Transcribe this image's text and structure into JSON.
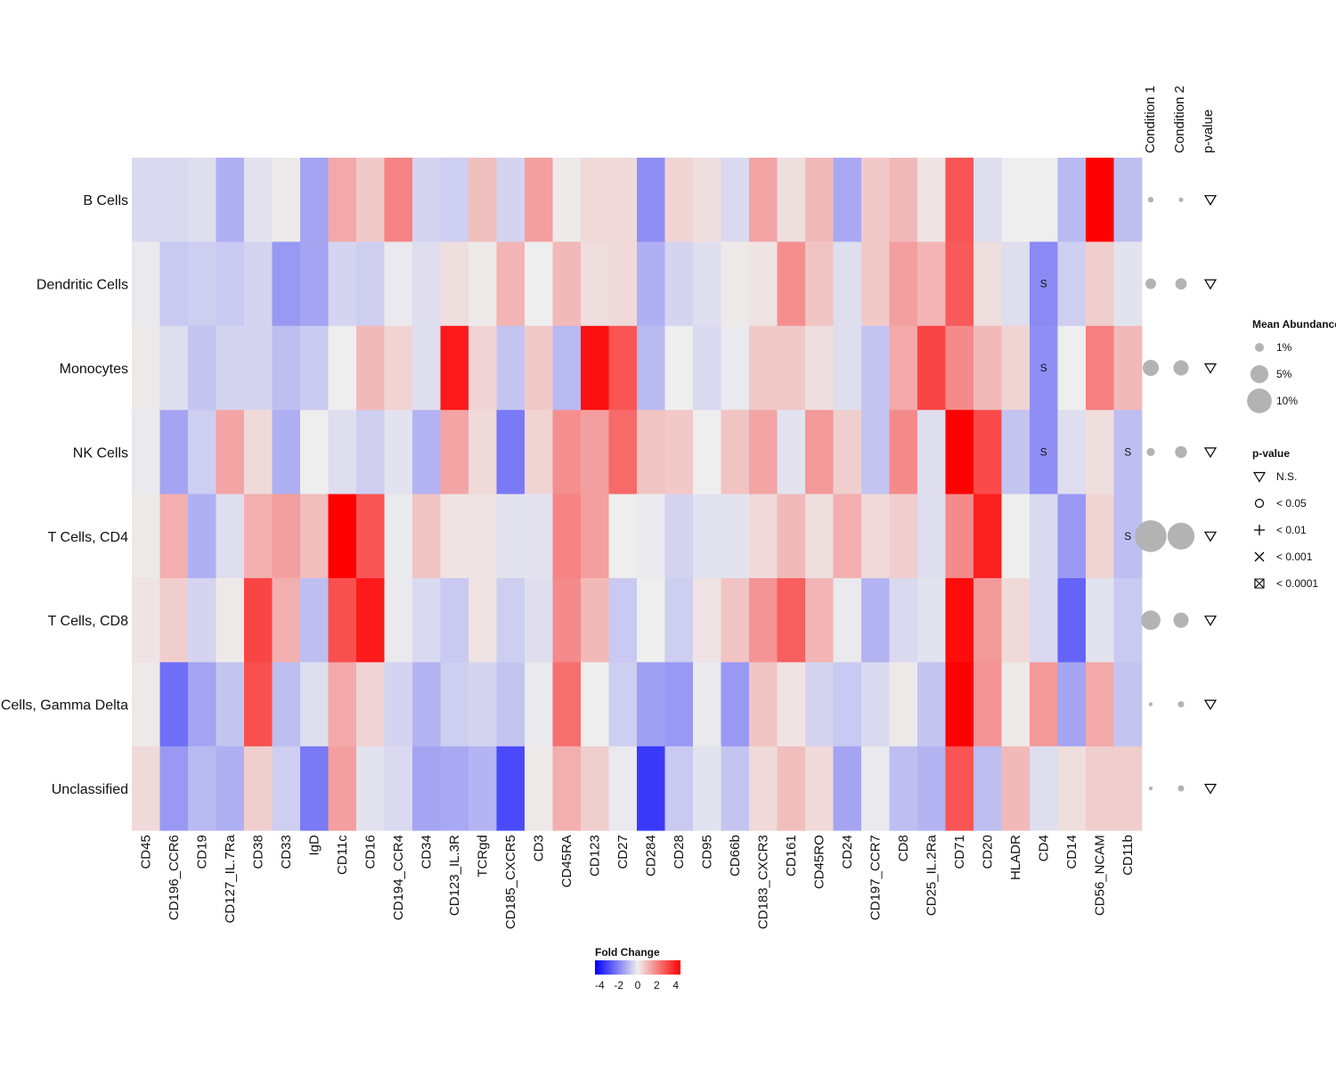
{
  "chart_data": {
    "type": "heatmap",
    "rows": [
      "B Cells",
      "Dendritic Cells",
      "Monocytes",
      "NK Cells",
      "T Cells, CD4",
      "T Cells, CD8",
      "Cells, Gamma Delta",
      "Unclassified"
    ],
    "columns": [
      "CD45",
      "CD196_CCR6",
      "CD19",
      "CD127_IL.7Ra",
      "CD38",
      "CD33",
      "IgD",
      "CD11c",
      "CD16",
      "CD194_CCR4",
      "CD34",
      "CD123_IL.3R",
      "TCRgd",
      "CD185_CXCR5",
      "CD3",
      "CD45RA",
      "CD123",
      "CD27",
      "CD284",
      "CD28",
      "CD95",
      "CD66b",
      "CD183_CXCR3",
      "CD161",
      "CD45RO",
      "CD24",
      "CD197_CCR7",
      "CD8",
      "CD25_IL.2Ra",
      "CD71",
      "CD20",
      "HLADR",
      "CD4",
      "CD14",
      "CD56_NCAM",
      "CD11b"
    ],
    "values": [
      [
        -0.4,
        -0.4,
        -0.3,
        -1.2,
        -0.2,
        0.1,
        -1.4,
        1.3,
        0.7,
        2.0,
        -0.5,
        -0.6,
        0.9,
        -0.5,
        1.5,
        0.1,
        0.4,
        0.4,
        -1.8,
        0.5,
        0.3,
        -0.4,
        1.4,
        0.3,
        1.0,
        -1.3,
        0.7,
        1.0,
        0.2,
        2.9,
        -0.3,
        0.0,
        0.0,
        -1.0,
        4.5,
        -0.9
      ],
      [
        -0.1,
        -0.7,
        -0.6,
        -0.7,
        -0.5,
        -1.6,
        -1.4,
        -0.5,
        -0.6,
        -0.1,
        -0.3,
        0.3,
        0.1,
        1.1,
        0.0,
        1.0,
        0.3,
        0.4,
        -1.2,
        -0.5,
        -0.3,
        0.1,
        0.2,
        1.8,
        0.8,
        -0.3,
        0.7,
        1.5,
        1.1,
        2.8,
        0.3,
        -0.3,
        -1.9,
        -0.6,
        0.6,
        -0.2
      ],
      [
        0.1,
        -0.3,
        -0.8,
        -0.5,
        -0.5,
        -0.9,
        -0.7,
        0.0,
        1.0,
        0.5,
        -0.3,
        4.0,
        0.5,
        -0.8,
        0.7,
        -1.0,
        4.2,
        2.9,
        -1.0,
        0.0,
        -0.4,
        -0.1,
        0.7,
        0.7,
        0.3,
        -0.3,
        -0.8,
        1.3,
        3.2,
        1.9,
        1.0,
        0.5,
        -1.8,
        0.0,
        2.1,
        1.0
      ],
      [
        -0.1,
        -1.4,
        -0.6,
        1.4,
        0.4,
        -1.2,
        0.0,
        -0.3,
        -0.6,
        -0.2,
        -1.1,
        1.4,
        0.4,
        -2.2,
        0.5,
        1.8,
        1.5,
        2.5,
        0.8,
        0.7,
        0.0,
        0.8,
        1.4,
        -0.2,
        1.6,
        0.6,
        -0.8,
        1.9,
        -0.3,
        4.8,
        3.1,
        -0.8,
        -1.8,
        -0.3,
        0.3,
        -0.9
      ],
      [
        0.1,
        1.2,
        -1.2,
        -0.3,
        1.2,
        1.5,
        0.9,
        4.8,
        2.9,
        -0.1,
        0.8,
        0.2,
        0.2,
        -0.2,
        -0.2,
        2.0,
        1.5,
        0.0,
        -0.1,
        -0.5,
        -0.2,
        -0.2,
        0.4,
        1.0,
        0.3,
        1.2,
        0.4,
        0.6,
        -0.3,
        1.9,
        3.9,
        0.0,
        -0.4,
        -1.6,
        0.5,
        -0.9
      ],
      [
        0.2,
        0.6,
        -0.5,
        0.1,
        3.2,
        1.2,
        -0.9,
        3.0,
        4.0,
        -0.1,
        -0.4,
        -0.7,
        0.2,
        -0.6,
        -0.3,
        1.9,
        1.0,
        -0.7,
        0.0,
        -0.6,
        0.2,
        0.8,
        1.7,
        2.7,
        1.1,
        -0.1,
        -1.1,
        -0.4,
        -0.2,
        4.3,
        1.6,
        0.4,
        -0.4,
        -2.6,
        -0.2,
        -0.7
      ],
      [
        0.1,
        -2.4,
        -1.4,
        -0.8,
        3.0,
        -0.9,
        -0.3,
        1.3,
        0.5,
        -0.5,
        -1.1,
        -0.6,
        -0.5,
        -0.8,
        -0.1,
        2.4,
        0.0,
        -0.6,
        -1.5,
        -1.6,
        -0.1,
        -1.6,
        0.8,
        0.2,
        -0.5,
        -0.7,
        -0.4,
        0.1,
        -0.8,
        4.8,
        1.7,
        0.1,
        1.6,
        -1.4,
        1.3,
        -0.8
      ],
      [
        0.4,
        -1.6,
        -1.0,
        -1.2,
        0.6,
        -0.6,
        -2.2,
        1.5,
        -0.2,
        -0.4,
        -1.4,
        -1.3,
        -1.1,
        -3.1,
        0.1,
        1.2,
        0.6,
        -0.1,
        -3.4,
        -0.7,
        -0.2,
        -0.8,
        0.4,
        0.9,
        0.4,
        -1.4,
        -0.1,
        -0.9,
        -1.1,
        2.9,
        -0.9,
        1.0,
        -0.3,
        0.3,
        0.6,
        0.6
      ]
    ],
    "significant": [
      {
        "row": "Dendritic Cells",
        "column": "CD4",
        "label": "S"
      },
      {
        "row": "Monocytes",
        "column": "CD4",
        "label": "S"
      },
      {
        "row": "NK Cells",
        "column": "CD4",
        "label": "S"
      },
      {
        "row": "NK Cells",
        "column": "CD11b",
        "label": "S"
      },
      {
        "row": "T Cells, CD4",
        "column": "CD11b",
        "label": "S"
      }
    ],
    "side_columns": [
      "Condition 1",
      "Condition 2",
      "p-value"
    ],
    "mean_abundance_pct": {
      "condition1": [
        0.3,
        1.5,
        4.0,
        0.8,
        17.0,
        6.0,
        0.1,
        0.1
      ],
      "condition2": [
        0.15,
        1.8,
        3.5,
        2.0,
        12.0,
        3.5,
        0.4,
        0.4
      ]
    },
    "pvalue_symbols": [
      "N.S.",
      "N.S.",
      "N.S.",
      "N.S.",
      "N.S.",
      "N.S.",
      "N.S.",
      "N.S."
    ],
    "fold_change_legend": {
      "title": "Fold Change",
      "range": [
        -4.5,
        4.5
      ],
      "ticks": [
        "-4",
        "-2",
        "0",
        "2",
        "4"
      ],
      "low_color": "#0000ff",
      "mid_color": "#eeeeee",
      "high_color": "#ff0000"
    },
    "size_legend": {
      "title": "Mean Abundance",
      "items": [
        "1%",
        "5%",
        "10%"
      ]
    },
    "pvalue_legend": {
      "title": "p-value",
      "items": [
        "N.S.",
        "< 0.05",
        "< 0.01",
        "< 0.001",
        "< 0.0001"
      ]
    }
  }
}
